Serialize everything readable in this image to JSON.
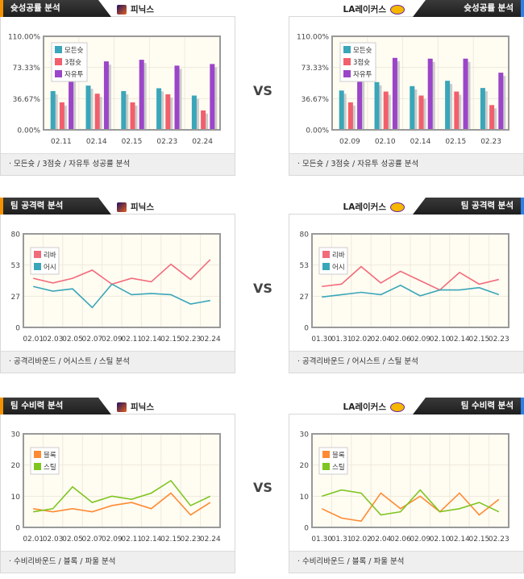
{
  "vs_label": "VS",
  "panels": [
    {
      "side": "left",
      "team": "피닉스",
      "logo": "suns-logo",
      "title": "슛성공률 분석",
      "footer": "모든슛 / 3점슛 / 자유투 성공률 분석",
      "chart": 0
    },
    {
      "side": "right",
      "team": "LA레이커스",
      "logo": "lakers-logo",
      "title": "슛성공률 분석",
      "footer": "모든슛 / 3점슛 / 자유투 성공률 분석",
      "chart": 1
    },
    {
      "side": "left",
      "team": "피닉스",
      "logo": "suns-logo",
      "title": "팀 공격력 분석",
      "footer": "공격리바운드 / 어시스트 / 스틸 분석",
      "chart": 2
    },
    {
      "side": "right",
      "team": "LA레이커스",
      "logo": "lakers-logo",
      "title": "팀 공격력 분석",
      "footer": "공격리바운드 / 어시스트 / 스틸 분석",
      "chart": 3
    },
    {
      "side": "left",
      "team": "피닉스",
      "logo": "suns-logo",
      "title": "팀 수비력 분석",
      "footer": "수비리바운드 / 블록 / 파울 분석",
      "chart": 4
    },
    {
      "side": "right",
      "team": "LA레이커스",
      "logo": "lakers-logo",
      "title": "팀 수비력 분석",
      "footer": "수비리바운드 / 블록 / 파울 분석",
      "chart": 5
    }
  ],
  "chart_data": [
    {
      "type": "bar",
      "ylim": [
        0,
        110
      ],
      "yticks": [
        "0.00%",
        "36.67%",
        "73.33%",
        "110.00%"
      ],
      "categories": [
        "02.11",
        "02.14",
        "02.15",
        "02.23",
        "02.24"
      ],
      "series": [
        {
          "name": "모든슛",
          "color": "#3aa6b9",
          "values": [
            45.6,
            52,
            45.6,
            48.9,
            40.3
          ]
        },
        {
          "name": "3점슛",
          "color": "#f25f6c",
          "values": [
            32.3,
            42.5,
            32.3,
            41.8,
            22.8
          ]
        },
        {
          "name": "자유투",
          "color": "#9b45c8",
          "values": [
            62,
            80.5,
            82.4,
            75.5,
            77.4
          ]
        }
      ]
    },
    {
      "type": "bar",
      "ylim": [
        0,
        110
      ],
      "yticks": [
        "0.00%",
        "36.67%",
        "73.33%",
        "110.00%"
      ],
      "categories": [
        "02.09",
        "02.10",
        "02.14",
        "02.15",
        "02.23"
      ],
      "series": [
        {
          "name": "모든슛",
          "color": "#3aa6b9",
          "values": [
            46.2,
            56.1,
            51.4,
            57.7,
            49.2
          ]
        },
        {
          "name": "3점슛",
          "color": "#f25f6c",
          "values": [
            32.3,
            45,
            40.3,
            45,
            29.1
          ]
        },
        {
          "name": "자유투",
          "color": "#9b45c8",
          "values": [
            62,
            84.6,
            83.7,
            83.7,
            67.2
          ]
        }
      ]
    },
    {
      "type": "line",
      "ylim": [
        0,
        80
      ],
      "yticks": [
        "0",
        "27",
        "53",
        "80"
      ],
      "categories": [
        "02.01",
        "02.03",
        "02.05",
        "02.07",
        "02.09",
        "02.11",
        "02.14",
        "02.15",
        "02.23",
        "02.24"
      ],
      "series": [
        {
          "name": "리바",
          "color": "#f26b7a",
          "values": [
            42,
            38,
            42,
            49,
            37,
            42,
            39,
            54,
            41,
            58
          ]
        },
        {
          "name": "어시",
          "color": "#3aa6b9",
          "values": [
            35,
            31,
            33,
            17,
            37,
            28,
            29,
            28,
            20,
            23
          ]
        }
      ]
    },
    {
      "type": "line",
      "ylim": [
        0,
        80
      ],
      "yticks": [
        "0",
        "27",
        "53",
        "80"
      ],
      "categories": [
        "01.30",
        "01.31",
        "02.02",
        "02.04",
        "02.06",
        "02.09",
        "02.10",
        "02.14",
        "02.15",
        "02.23"
      ],
      "series": [
        {
          "name": "리바",
          "color": "#f26b7a",
          "values": [
            35,
            37,
            52,
            38,
            48,
            40,
            32,
            47,
            37,
            41
          ]
        },
        {
          "name": "어시",
          "color": "#3aa6b9",
          "values": [
            26,
            28,
            30,
            28,
            36,
            27,
            32,
            32,
            34,
            28
          ]
        }
      ]
    },
    {
      "type": "line",
      "ylim": [
        0,
        30
      ],
      "yticks": [
        "0",
        "10",
        "20",
        "30"
      ],
      "categories": [
        "02.01",
        "02.03",
        "02.05",
        "02.07",
        "02.09",
        "02.11",
        "02.14",
        "02.15",
        "02.23",
        "02.24"
      ],
      "series": [
        {
          "name": "블록",
          "color": "#ff8a33",
          "values": [
            6,
            5,
            6,
            5,
            7,
            8,
            6,
            11,
            4,
            8
          ]
        },
        {
          "name": "스틸",
          "color": "#7fc520",
          "values": [
            5,
            6,
            13,
            8,
            10,
            9,
            11,
            15,
            7,
            10
          ]
        }
      ]
    },
    {
      "type": "line",
      "ylim": [
        0,
        30
      ],
      "yticks": [
        "0",
        "10",
        "20",
        "30"
      ],
      "categories": [
        "01.30",
        "01.31",
        "02.02",
        "02.04",
        "02.06",
        "02.09",
        "02.10",
        "02.14",
        "02.15",
        "02.23"
      ],
      "series": [
        {
          "name": "블록",
          "color": "#ff8a33",
          "values": [
            6,
            3,
            2,
            11,
            6,
            10,
            5,
            11,
            4,
            9
          ]
        },
        {
          "name": "스틸",
          "color": "#7fc520",
          "values": [
            10,
            12,
            11,
            4,
            5,
            12,
            5,
            6,
            8,
            5
          ]
        }
      ]
    }
  ]
}
